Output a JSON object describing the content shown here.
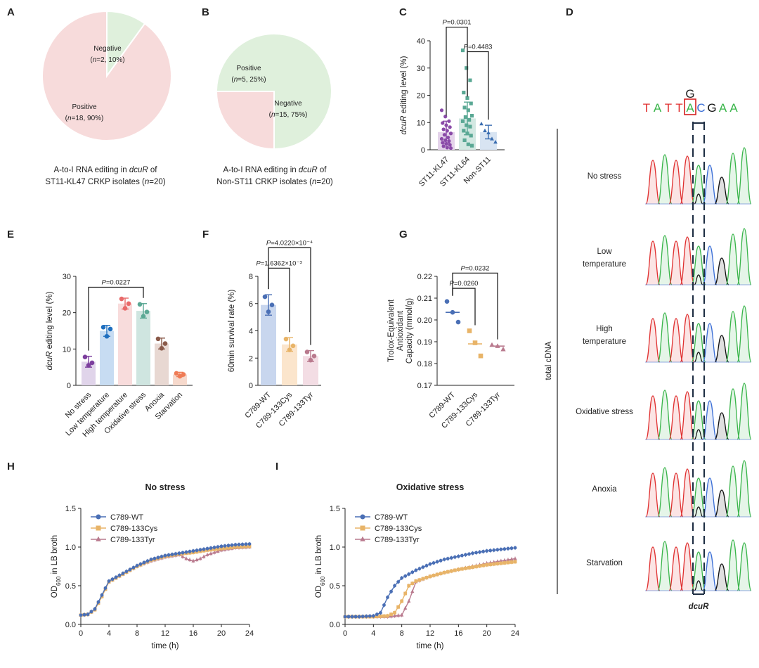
{
  "panels": {
    "A": {
      "letter": "A",
      "caption_line1_pre": "A-to-I RNA editing in ",
      "caption_line1_gene": "dcuR",
      "caption_line1_post": " of",
      "caption_line2_pre": "ST11-KL47 CRKP isolates (",
      "caption_line2_n": "n",
      "caption_line2_post": "=20)"
    },
    "B": {
      "letter": "B",
      "caption_line1_pre": "A-to-I RNA editing in ",
      "caption_line1_gene": "dcuR",
      "caption_line1_post": " of",
      "caption_line2_pre": "Non-ST11 CRKP isolates (",
      "caption_line2_n": "n",
      "caption_line2_post": "=20)"
    },
    "C": {
      "letter": "C"
    },
    "D": {
      "letter": "D",
      "ref_base": "G",
      "sequence": [
        "T",
        "A",
        "T",
        "T",
        "A",
        "C",
        "G",
        "A",
        "A"
      ],
      "side_label": "total cDNA",
      "gene_label": "dcuR",
      "conditions": [
        {
          "line1": "No stress",
          "line2": ""
        },
        {
          "line1": "Low",
          "line2": "temperature"
        },
        {
          "line1": "High",
          "line2": "temperature"
        },
        {
          "line1": "Oxidative stress",
          "line2": ""
        },
        {
          "line1": "Anoxia",
          "line2": ""
        },
        {
          "line1": "Starvation",
          "line2": ""
        }
      ]
    },
    "E": {
      "letter": "E"
    },
    "F": {
      "letter": "F"
    },
    "G": {
      "letter": "G"
    },
    "H": {
      "letter": "H"
    },
    "I": {
      "letter": "I"
    }
  },
  "colors": {
    "pie_positive": "#f7dbdb",
    "pie_negative": "#dff0dc",
    "seq_T": "#e03030",
    "seq_A": "#39b54a",
    "seq_C": "#3b6fd6",
    "seq_G": "#111111",
    "wt": "#4a6fb5",
    "cys": "#e8b468",
    "tyr": "#b97a8e"
  },
  "chart_data": [
    {
      "panel": "A",
      "type": "pie",
      "slices": [
        {
          "name": "Negative",
          "value": 10,
          "label_n": "(n=2, 10%)",
          "color": "#dff0dc"
        },
        {
          "name": "Positive",
          "value": 90,
          "label_n": "(n=18, 90%)",
          "color": "#f7dbdb"
        }
      ]
    },
    {
      "panel": "B",
      "type": "pie",
      "slices": [
        {
          "name": "Negative",
          "value": 75,
          "label_n": "(n=15, 75%)",
          "color": "#dff0dc"
        },
        {
          "name": "Positive",
          "value": 25,
          "label_n": "(n=5, 25%)",
          "color": "#f7dbdb"
        }
      ]
    },
    {
      "panel": "C",
      "type": "bar",
      "ylabel_gene": "dcuR",
      "ylabel_rest": " editing level (%)",
      "ylim": [
        0,
        40
      ],
      "yticks": [
        0,
        10,
        20,
        30,
        40
      ],
      "categories": [
        "ST11-KL47",
        "ST11-KL64",
        "Non-ST11"
      ],
      "values": [
        6.5,
        11.5,
        6.5
      ],
      "errors": [
        4,
        6,
        2.5
      ],
      "bar_colors": [
        "#e4d3ea",
        "#d3e8e2",
        "#d8e4f2"
      ],
      "point_colors": [
        "#8a4aa8",
        "#5aa894",
        "#3a6db0"
      ],
      "markers": [
        "circle",
        "square",
        "triangle"
      ],
      "points": [
        [
          14.5,
          12.2,
          10.5,
          9.8,
          9.0,
          8.3,
          7.5,
          7.0,
          6.0,
          5.5,
          4.5,
          4.0,
          3.5,
          3.2,
          2.6,
          2.2,
          1.8,
          1.3,
          0.8,
          0.6
        ],
        [
          36.5,
          30.0,
          25.5,
          21.0,
          19.0,
          17.0,
          15.5,
          14.5,
          12.5,
          12.0,
          11.0,
          10.5,
          9.0,
          8.5,
          7.0,
          6.0,
          5.2,
          3.5,
          2.0,
          1.5
        ],
        [
          9.5,
          7.0,
          6.2,
          4.0,
          2.8
        ]
      ],
      "comparisons": [
        {
          "from": 0,
          "to": 1,
          "label": "P=0.0301",
          "y": 45
        },
        {
          "from": 1,
          "to": 2,
          "label": "P=0.4483",
          "y": 36
        }
      ]
    },
    {
      "panel": "E",
      "type": "bar",
      "ylabel_gene": "dcuR",
      "ylabel_rest": " editing level (%)",
      "ylim": [
        0,
        30
      ],
      "yticks": [
        0,
        10,
        20,
        30
      ],
      "categories": [
        "No stress",
        "Low temperature",
        "High temperature",
        "Oxidative stress",
        "Anoxia",
        "Starvation"
      ],
      "values": [
        6.5,
        15,
        22.5,
        20.5,
        11.5,
        3
      ],
      "errors": [
        1.5,
        1.5,
        1.5,
        2.0,
        1.5,
        0.6
      ],
      "bar_colors": [
        "#e0d4ea",
        "#c7dcf2",
        "#f8dcdc",
        "#cfe5e0",
        "#e8d8d2",
        "#f6d9cc"
      ],
      "point_colors": [
        "#7d3f9e",
        "#1f6fbf",
        "#e86a6a",
        "#5aa894",
        "#8a5a4a",
        "#ef7b55"
      ],
      "points": [
        [
          7.8,
          5.5,
          6.2
        ],
        [
          16.0,
          13.5,
          15.5
        ],
        [
          23.8,
          21.2,
          22.5
        ],
        [
          22.3,
          19.0,
          20.2
        ],
        [
          12.8,
          10.2,
          11.5
        ],
        [
          3.3,
          2.5,
          3.0
        ]
      ],
      "comparisons": [
        {
          "from": 0,
          "to": 3,
          "label": "P=0.0227",
          "y": 27
        }
      ]
    },
    {
      "panel": "F",
      "type": "bar",
      "ylabel": "60min survival rate (%)",
      "ylim": [
        0,
        8
      ],
      "yticks": [
        0,
        2,
        4,
        6,
        8
      ],
      "categories": [
        "C789-WT",
        "C789-133Cys",
        "C789-133Tyr"
      ],
      "values": [
        5.9,
        3.0,
        2.15
      ],
      "errors": [
        0.75,
        0.5,
        0.4
      ],
      "bar_colors": [
        "#c8d6ee",
        "#fbe5cc",
        "#f3dde4"
      ],
      "point_colors": [
        "#4a6fb5",
        "#e8b468",
        "#b97a8e"
      ],
      "points": [
        [
          6.5,
          5.4,
          5.9
        ],
        [
          3.4,
          2.6,
          2.9
        ],
        [
          2.45,
          1.85,
          2.15
        ]
      ],
      "comparisons": [
        {
          "from": 0,
          "to": 1,
          "label": "P=1.6362×10⁻³",
          "y": 8.6
        },
        {
          "from": 0,
          "to": 2,
          "label": "P=4.0220×10⁻⁴",
          "y": 10.1
        }
      ]
    },
    {
      "panel": "G",
      "type": "scatter",
      "ylabel_lines": [
        "Trolox-Equivalent",
        "Antioxidant",
        "Capacity (mmol/g)"
      ],
      "ylim": [
        0.17,
        0.22
      ],
      "yticks": [
        0.17,
        0.18,
        0.19,
        0.2,
        0.21,
        0.22
      ],
      "categories": [
        "C789-WT",
        "C789-133Cys",
        "C789-133Tyr"
      ],
      "medians": [
        0.2035,
        0.189,
        0.188
      ],
      "point_colors": [
        "#4a6fb5",
        "#e8b468",
        "#b97a8e"
      ],
      "points": [
        [
          0.2085,
          0.2035,
          0.199
        ],
        [
          0.195,
          0.1895,
          0.1835
        ],
        [
          0.1885,
          0.188,
          0.1865
        ]
      ],
      "comparisons": [
        {
          "from": 0,
          "to": 1,
          "label": "P=0.0260",
          "y": 0.2145
        },
        {
          "from": 0,
          "to": 2,
          "label": "P=0.0232",
          "y": 0.2215
        }
      ]
    },
    {
      "panel": "H",
      "type": "line",
      "title": "No stress",
      "xlabel": "time (h)",
      "ylabel": "OD",
      "ylabel_sub": "600",
      "ylabel_post": " in LB broth",
      "xlim": [
        0,
        24
      ],
      "ylim": [
        0,
        1.5
      ],
      "xticks": [
        0,
        4,
        8,
        12,
        16,
        20,
        24
      ],
      "yticks": [
        0.0,
        0.5,
        1.0,
        1.5
      ],
      "legend": "top-left",
      "series": [
        {
          "name": "C789-WT",
          "color": "#4a6fb5",
          "marker": "circle",
          "x": [
            0,
            1,
            2,
            3,
            4,
            6,
            8,
            10,
            12,
            14,
            16,
            18,
            20,
            22,
            24
          ],
          "y": [
            0.12,
            0.13,
            0.2,
            0.38,
            0.56,
            0.66,
            0.76,
            0.84,
            0.89,
            0.92,
            0.95,
            0.98,
            1.01,
            1.03,
            1.04
          ]
        },
        {
          "name": "C789-133Cys",
          "color": "#e8b468",
          "marker": "square",
          "x": [
            0,
            1,
            2,
            3,
            4,
            6,
            8,
            10,
            12,
            14,
            16,
            18,
            20,
            22,
            24
          ],
          "y": [
            0.12,
            0.13,
            0.19,
            0.36,
            0.55,
            0.65,
            0.75,
            0.83,
            0.88,
            0.91,
            0.93,
            0.96,
            0.98,
            1.0,
            1.01
          ]
        },
        {
          "name": "C789-133Tyr",
          "color": "#b97a8e",
          "marker": "triangle",
          "x": [
            0,
            1,
            2,
            3,
            4,
            6,
            8,
            10,
            12,
            14,
            15,
            16,
            17,
            18,
            20,
            22,
            24
          ],
          "y": [
            0.12,
            0.13,
            0.2,
            0.37,
            0.55,
            0.65,
            0.75,
            0.82,
            0.87,
            0.9,
            0.85,
            0.82,
            0.85,
            0.9,
            0.96,
            0.99,
            1.0
          ]
        }
      ]
    },
    {
      "panel": "I",
      "type": "line",
      "title": "Oxidative stress",
      "xlabel": "time (h)",
      "ylabel": "OD",
      "ylabel_sub": "600",
      "ylabel_post": " in LB broth",
      "xlim": [
        0,
        24
      ],
      "ylim": [
        0,
        1.5
      ],
      "xticks": [
        0,
        4,
        8,
        12,
        16,
        20,
        24
      ],
      "yticks": [
        0.0,
        0.5,
        1.0,
        1.5
      ],
      "legend": "top-left",
      "series": [
        {
          "name": "C789-WT",
          "color": "#4a6fb5",
          "marker": "circle",
          "x": [
            0,
            2,
            4,
            5,
            6,
            7,
            8,
            10,
            12,
            14,
            16,
            18,
            20,
            22,
            24
          ],
          "y": [
            0.1,
            0.1,
            0.11,
            0.15,
            0.35,
            0.5,
            0.6,
            0.7,
            0.78,
            0.84,
            0.88,
            0.92,
            0.95,
            0.97,
            0.99
          ]
        },
        {
          "name": "C789-133Cys",
          "color": "#e8b468",
          "marker": "square",
          "x": [
            0,
            2,
            4,
            6,
            7,
            8,
            9,
            10,
            12,
            14,
            16,
            18,
            20,
            22,
            24
          ],
          "y": [
            0.1,
            0.1,
            0.1,
            0.11,
            0.15,
            0.3,
            0.5,
            0.56,
            0.62,
            0.67,
            0.71,
            0.74,
            0.77,
            0.79,
            0.81
          ]
        },
        {
          "name": "C789-133Tyr",
          "color": "#b97a8e",
          "marker": "triangle",
          "x": [
            0,
            2,
            4,
            6,
            8,
            9,
            10,
            12,
            14,
            16,
            18,
            20,
            22,
            24
          ],
          "y": [
            0.1,
            0.1,
            0.1,
            0.1,
            0.12,
            0.3,
            0.55,
            0.62,
            0.67,
            0.71,
            0.75,
            0.79,
            0.82,
            0.85
          ]
        }
      ]
    }
  ]
}
